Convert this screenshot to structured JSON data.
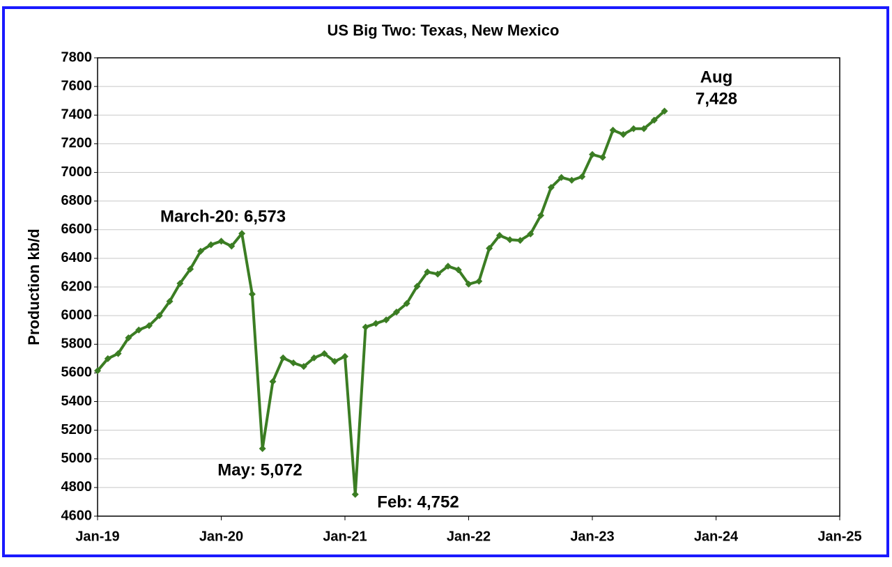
{
  "chart_data": {
    "type": "line",
    "title": "US Big Two: Texas, New Mexico",
    "y_label": "Production kb/d",
    "x": [
      "2019-01",
      "2019-02",
      "2019-03",
      "2019-04",
      "2019-05",
      "2019-06",
      "2019-07",
      "2019-08",
      "2019-09",
      "2019-10",
      "2019-11",
      "2019-12",
      "2020-01",
      "2020-02",
      "2020-03",
      "2020-04",
      "2020-05",
      "2020-06",
      "2020-07",
      "2020-08",
      "2020-09",
      "2020-10",
      "2020-11",
      "2020-12",
      "2021-01",
      "2021-02",
      "2021-03",
      "2021-04",
      "2021-05",
      "2021-06",
      "2021-07",
      "2021-08",
      "2021-09",
      "2021-10",
      "2021-11",
      "2021-12",
      "2022-01",
      "2022-02",
      "2022-03",
      "2022-04",
      "2022-05",
      "2022-06",
      "2022-07",
      "2022-08",
      "2022-09",
      "2022-10",
      "2022-11",
      "2022-12",
      "2023-01",
      "2023-02",
      "2023-03",
      "2023-04",
      "2023-05",
      "2023-06",
      "2023-07",
      "2023-08"
    ],
    "series": [
      {
        "color": "#3b7d23",
        "values": [
          5615,
          5700,
          5735,
          5845,
          5900,
          5930,
          6000,
          6100,
          6225,
          6325,
          6450,
          6495,
          6520,
          6485,
          6573,
          6150,
          5072,
          5540,
          5705,
          5670,
          5645,
          5705,
          5735,
          5680,
          5715,
          4752,
          5920,
          5945,
          5970,
          6025,
          6085,
          6205,
          6305,
          6290,
          6345,
          6320,
          6220,
          6240,
          6470,
          6560,
          6530,
          6525,
          6570,
          6700,
          6895,
          6965,
          6945,
          6970,
          7125,
          7105,
          7295,
          7265,
          7305,
          7305,
          7365,
          7428
        ]
      }
    ],
    "xlim": [
      "2019-01",
      "2025-01"
    ],
    "xticks": [
      {
        "value": "2019-01",
        "label": "Jan-19"
      },
      {
        "value": "2020-01",
        "label": "Jan-20"
      },
      {
        "value": "2021-01",
        "label": "Jan-21"
      },
      {
        "value": "2022-01",
        "label": "Jan-22"
      },
      {
        "value": "2023-01",
        "label": "Jan-23"
      },
      {
        "value": "2024-01",
        "label": "Jan-24"
      },
      {
        "value": "2025-01",
        "label": "Jan-25"
      }
    ],
    "ylim": [
      4600,
      7800
    ],
    "yticks": [
      4600,
      4800,
      5000,
      5200,
      5400,
      5600,
      5800,
      6000,
      6200,
      6400,
      6600,
      6800,
      7000,
      7200,
      7400,
      7600,
      7800
    ],
    "grid": true,
    "annotations": [
      "March-20: 6,573",
      "May: 5,072",
      "Feb: 4,752",
      "Aug",
      "7,428"
    ]
  }
}
